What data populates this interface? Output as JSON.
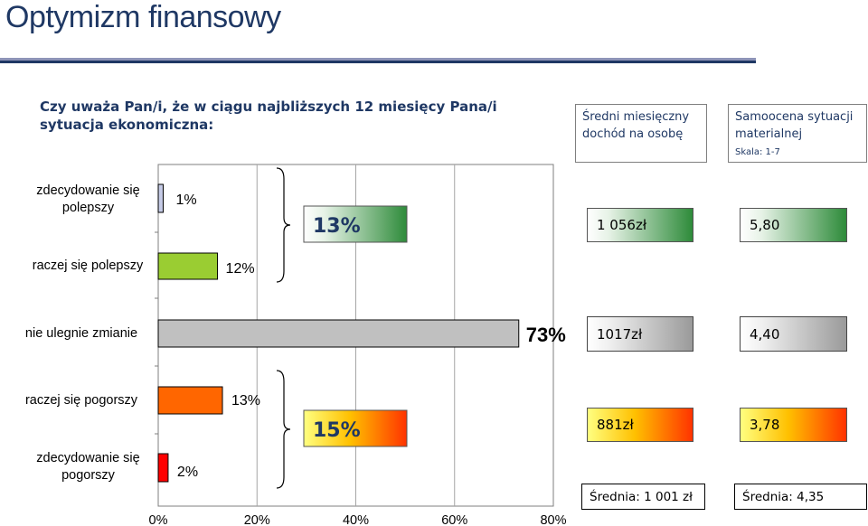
{
  "title": "Optymizm finansowy",
  "question": "Czy uważa Pan/i, że w ciągu najbliższych 12 miesięcy Pana/i sytuacja ekonomiczna:",
  "headers": {
    "income": "Średni miesięczny dochód na osobę",
    "selfassess": "Samoocena sytuacji materialnej",
    "selfassess_scale": "Skala: 1-7"
  },
  "chart_data": {
    "type": "bar",
    "orientation": "horizontal",
    "categories": [
      "zdecydowanie się polepszy",
      "raczej się polepszy",
      "nie ulegnie zmianie",
      "raczej się pogorszy",
      "zdecydowanie się pogorszy"
    ],
    "values": [
      1,
      12,
      73,
      13,
      2
    ],
    "value_labels": [
      "1%",
      "12%",
      "73%",
      "13%",
      "2%"
    ],
    "bar_colors": [
      "#c5cbe6",
      "#9acd32",
      "#c0c0c0",
      "#ff6600",
      "#ff0000"
    ],
    "xlim": [
      0,
      80
    ],
    "x_ticks": [
      "0%",
      "20%",
      "40%",
      "60%",
      "80%"
    ],
    "grid": true,
    "group_totals": [
      {
        "label": "13%",
        "categories": [
          0,
          1
        ]
      },
      {
        "label": "15%",
        "categories": [
          3,
          4
        ]
      }
    ],
    "income": [
      "1 056zł",
      "1017zł",
      "881zł"
    ],
    "selfassess": [
      "5,80",
      "4,40",
      "3,78"
    ],
    "income_average": "Średnia: 1 001 zł",
    "selfassess_average": "Średnia: 4,35"
  }
}
